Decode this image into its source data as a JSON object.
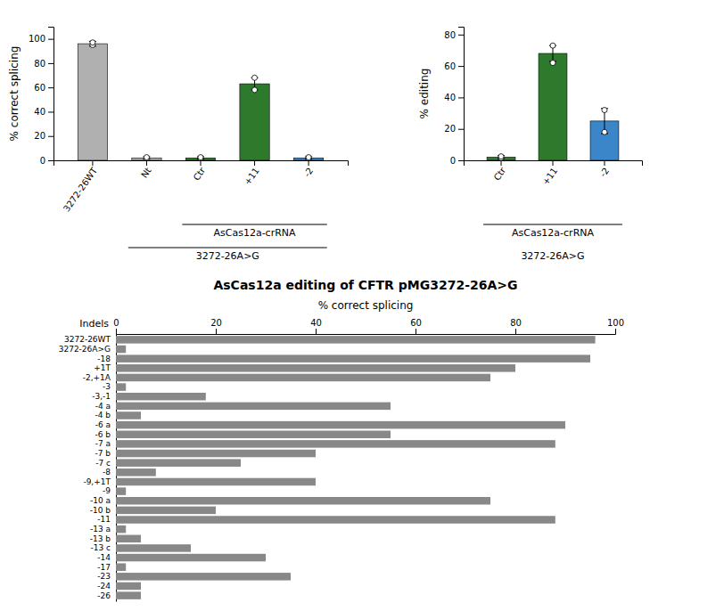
{
  "chart_data": [
    {
      "type": "bar",
      "categories": [
        "3272-26WT",
        "Nt",
        "Ctr",
        "+11",
        "-2"
      ],
      "values": [
        96,
        2,
        2,
        63,
        2
      ],
      "errors": [
        2,
        1,
        1,
        5,
        1
      ],
      "dots": [
        [
          95,
          97
        ],
        [
          1.5,
          2.5
        ],
        [
          1.5,
          2.5
        ],
        [
          58,
          68
        ],
        [
          1.5,
          2.5
        ]
      ],
      "colors": [
        "#b0b0b0",
        "#b0b0b0",
        "#2d7a2d",
        "#2d7a2d",
        "#3a86c8"
      ],
      "ylabel": "% correct splicing",
      "ylim": [
        0,
        110
      ],
      "yticks": [
        0,
        20,
        40,
        60,
        80,
        100
      ],
      "annotations": [
        "AsCas12a-crRNA",
        "3272-26A>G"
      ]
    },
    {
      "type": "bar",
      "categories": [
        "Ctr",
        "+11",
        "-2"
      ],
      "values": [
        2,
        68,
        25
      ],
      "errors": [
        1,
        5,
        8
      ],
      "dots": [
        [
          1.5,
          2.5
        ],
        [
          62,
          73
        ],
        [
          18,
          32
        ]
      ],
      "colors": [
        "#2d7a2d",
        "#2d7a2d",
        "#3a86c8"
      ],
      "ylabel": "% editing",
      "ylim": [
        0,
        85
      ],
      "yticks": [
        0,
        20,
        40,
        60,
        80
      ],
      "annotations": [
        "AsCas12a-crRNA",
        "3272-26A>G"
      ]
    },
    {
      "type": "bar",
      "orientation": "horizontal",
      "title": "AsCas12a editing of CFTR pMG3272-26A>G",
      "categories": [
        "3272-26WT",
        "3272-26A>G",
        "-18",
        "+1T",
        "-2,+1A",
        "-3",
        "-3,-1",
        "-4 a",
        "-4 b",
        "-6 a",
        "-6 b",
        "-7 a",
        "-7 b",
        "-7 c",
        "-8",
        "-9,+1T",
        "-9",
        "-10 a",
        "-10 b",
        "-11",
        "-13 a",
        "-13 b",
        "-13 c",
        "-14",
        "-17",
        "-23",
        "-24",
        "-26"
      ],
      "values": [
        96,
        2,
        95,
        80,
        75,
        2,
        18,
        55,
        5,
        90,
        55,
        88,
        40,
        25,
        8,
        40,
        2,
        75,
        20,
        88,
        2,
        5,
        15,
        30,
        2,
        35,
        5,
        5
      ],
      "color": "#888888",
      "xlabel": "% correct splicing",
      "ylabel": "Indels",
      "xlim": [
        0,
        100
      ],
      "xticks": [
        0,
        20,
        40,
        60,
        80,
        100
      ]
    }
  ]
}
